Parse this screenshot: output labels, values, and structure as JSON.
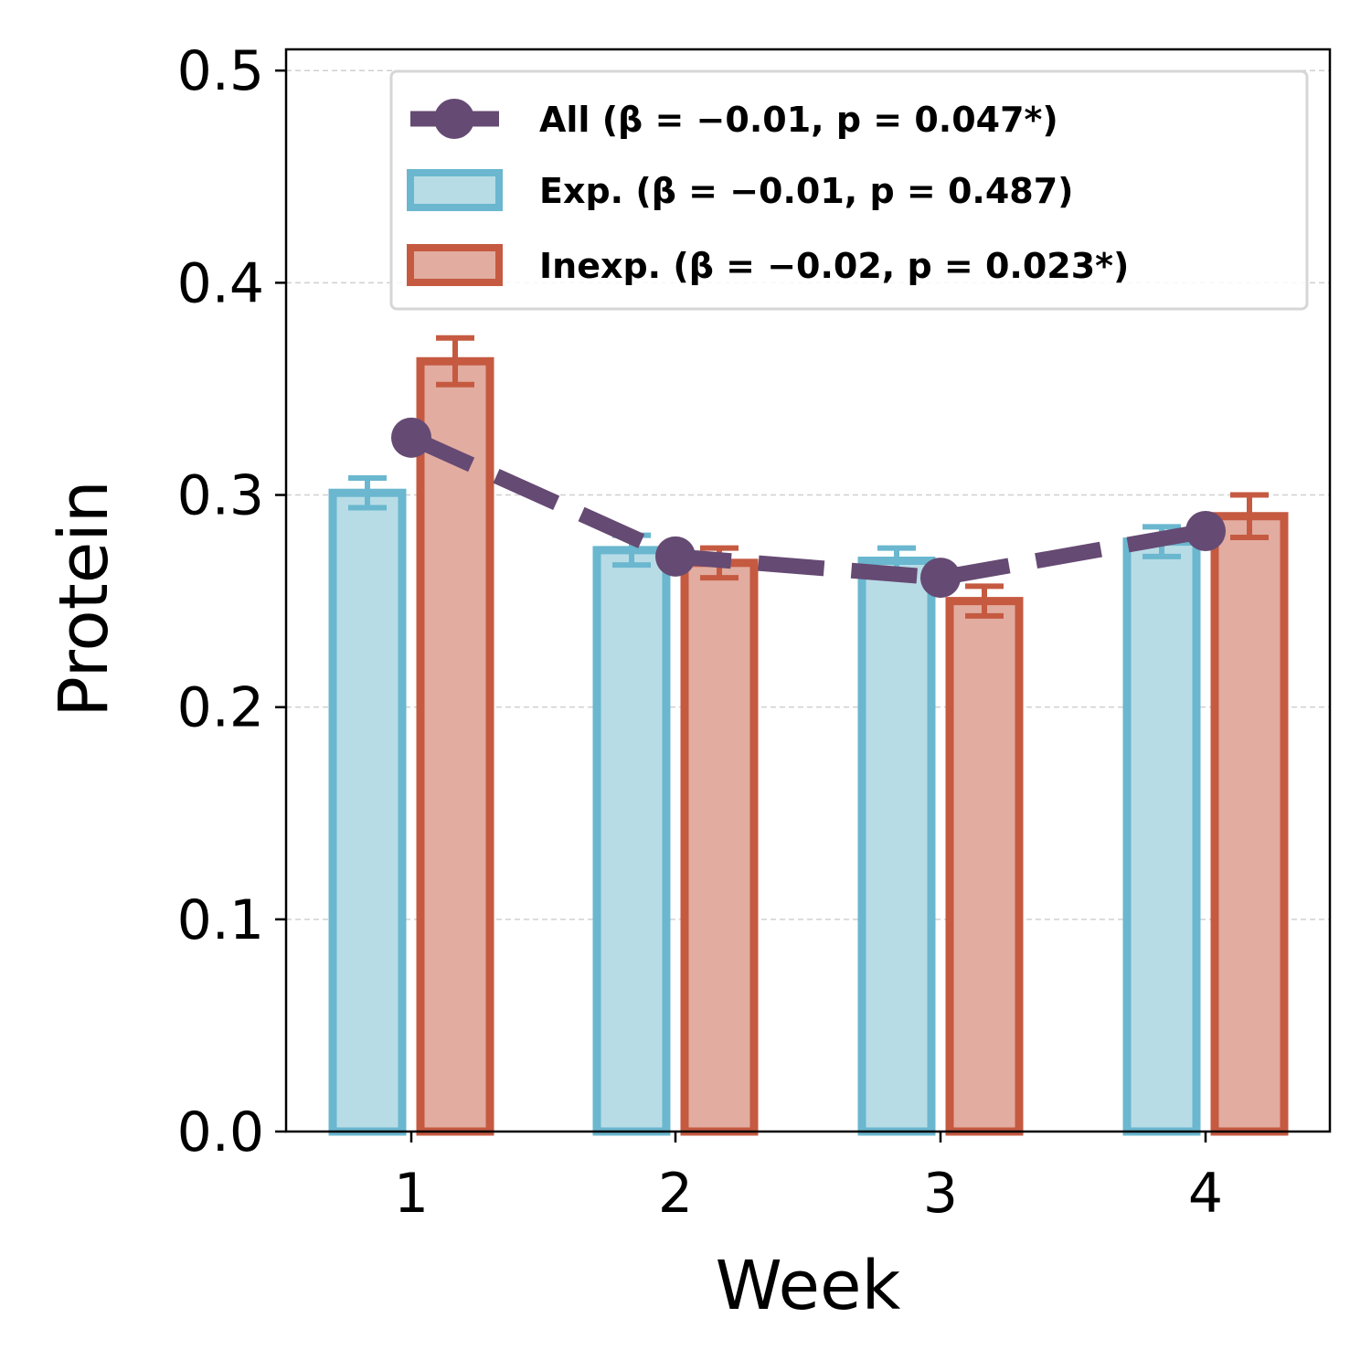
{
  "chart_data": {
    "type": "bar",
    "xlabel": "Week",
    "ylabel": "Protein",
    "categories": [
      "1",
      "2",
      "3",
      "4"
    ],
    "ylim": [
      0.0,
      0.51
    ],
    "yticks": [
      "0.0",
      "0.1",
      "0.2",
      "0.3",
      "0.4",
      "0.5"
    ],
    "grid": "horizontal dashed",
    "legend_position": "top-right",
    "series": [
      {
        "name": "Exp. (β = −0.01, p = 0.487)",
        "kind": "bar",
        "values": [
          0.301,
          0.274,
          0.269,
          0.278
        ],
        "errors": [
          0.007,
          0.007,
          0.006,
          0.007
        ],
        "fill": "#b7dce6",
        "edge": "#6ab7cf"
      },
      {
        "name": "Inexp. (β = −0.02, p = 0.023*)",
        "kind": "bar",
        "values": [
          0.363,
          0.268,
          0.25,
          0.29
        ],
        "errors": [
          0.011,
          0.007,
          0.007,
          0.01
        ],
        "fill": "#e2aca0",
        "edge": "#c55a41"
      },
      {
        "name": "All (β = −0.01, p = 0.047*)",
        "kind": "line",
        "values": [
          0.327,
          0.271,
          0.261,
          0.283
        ],
        "color": "#654a73"
      }
    ]
  }
}
